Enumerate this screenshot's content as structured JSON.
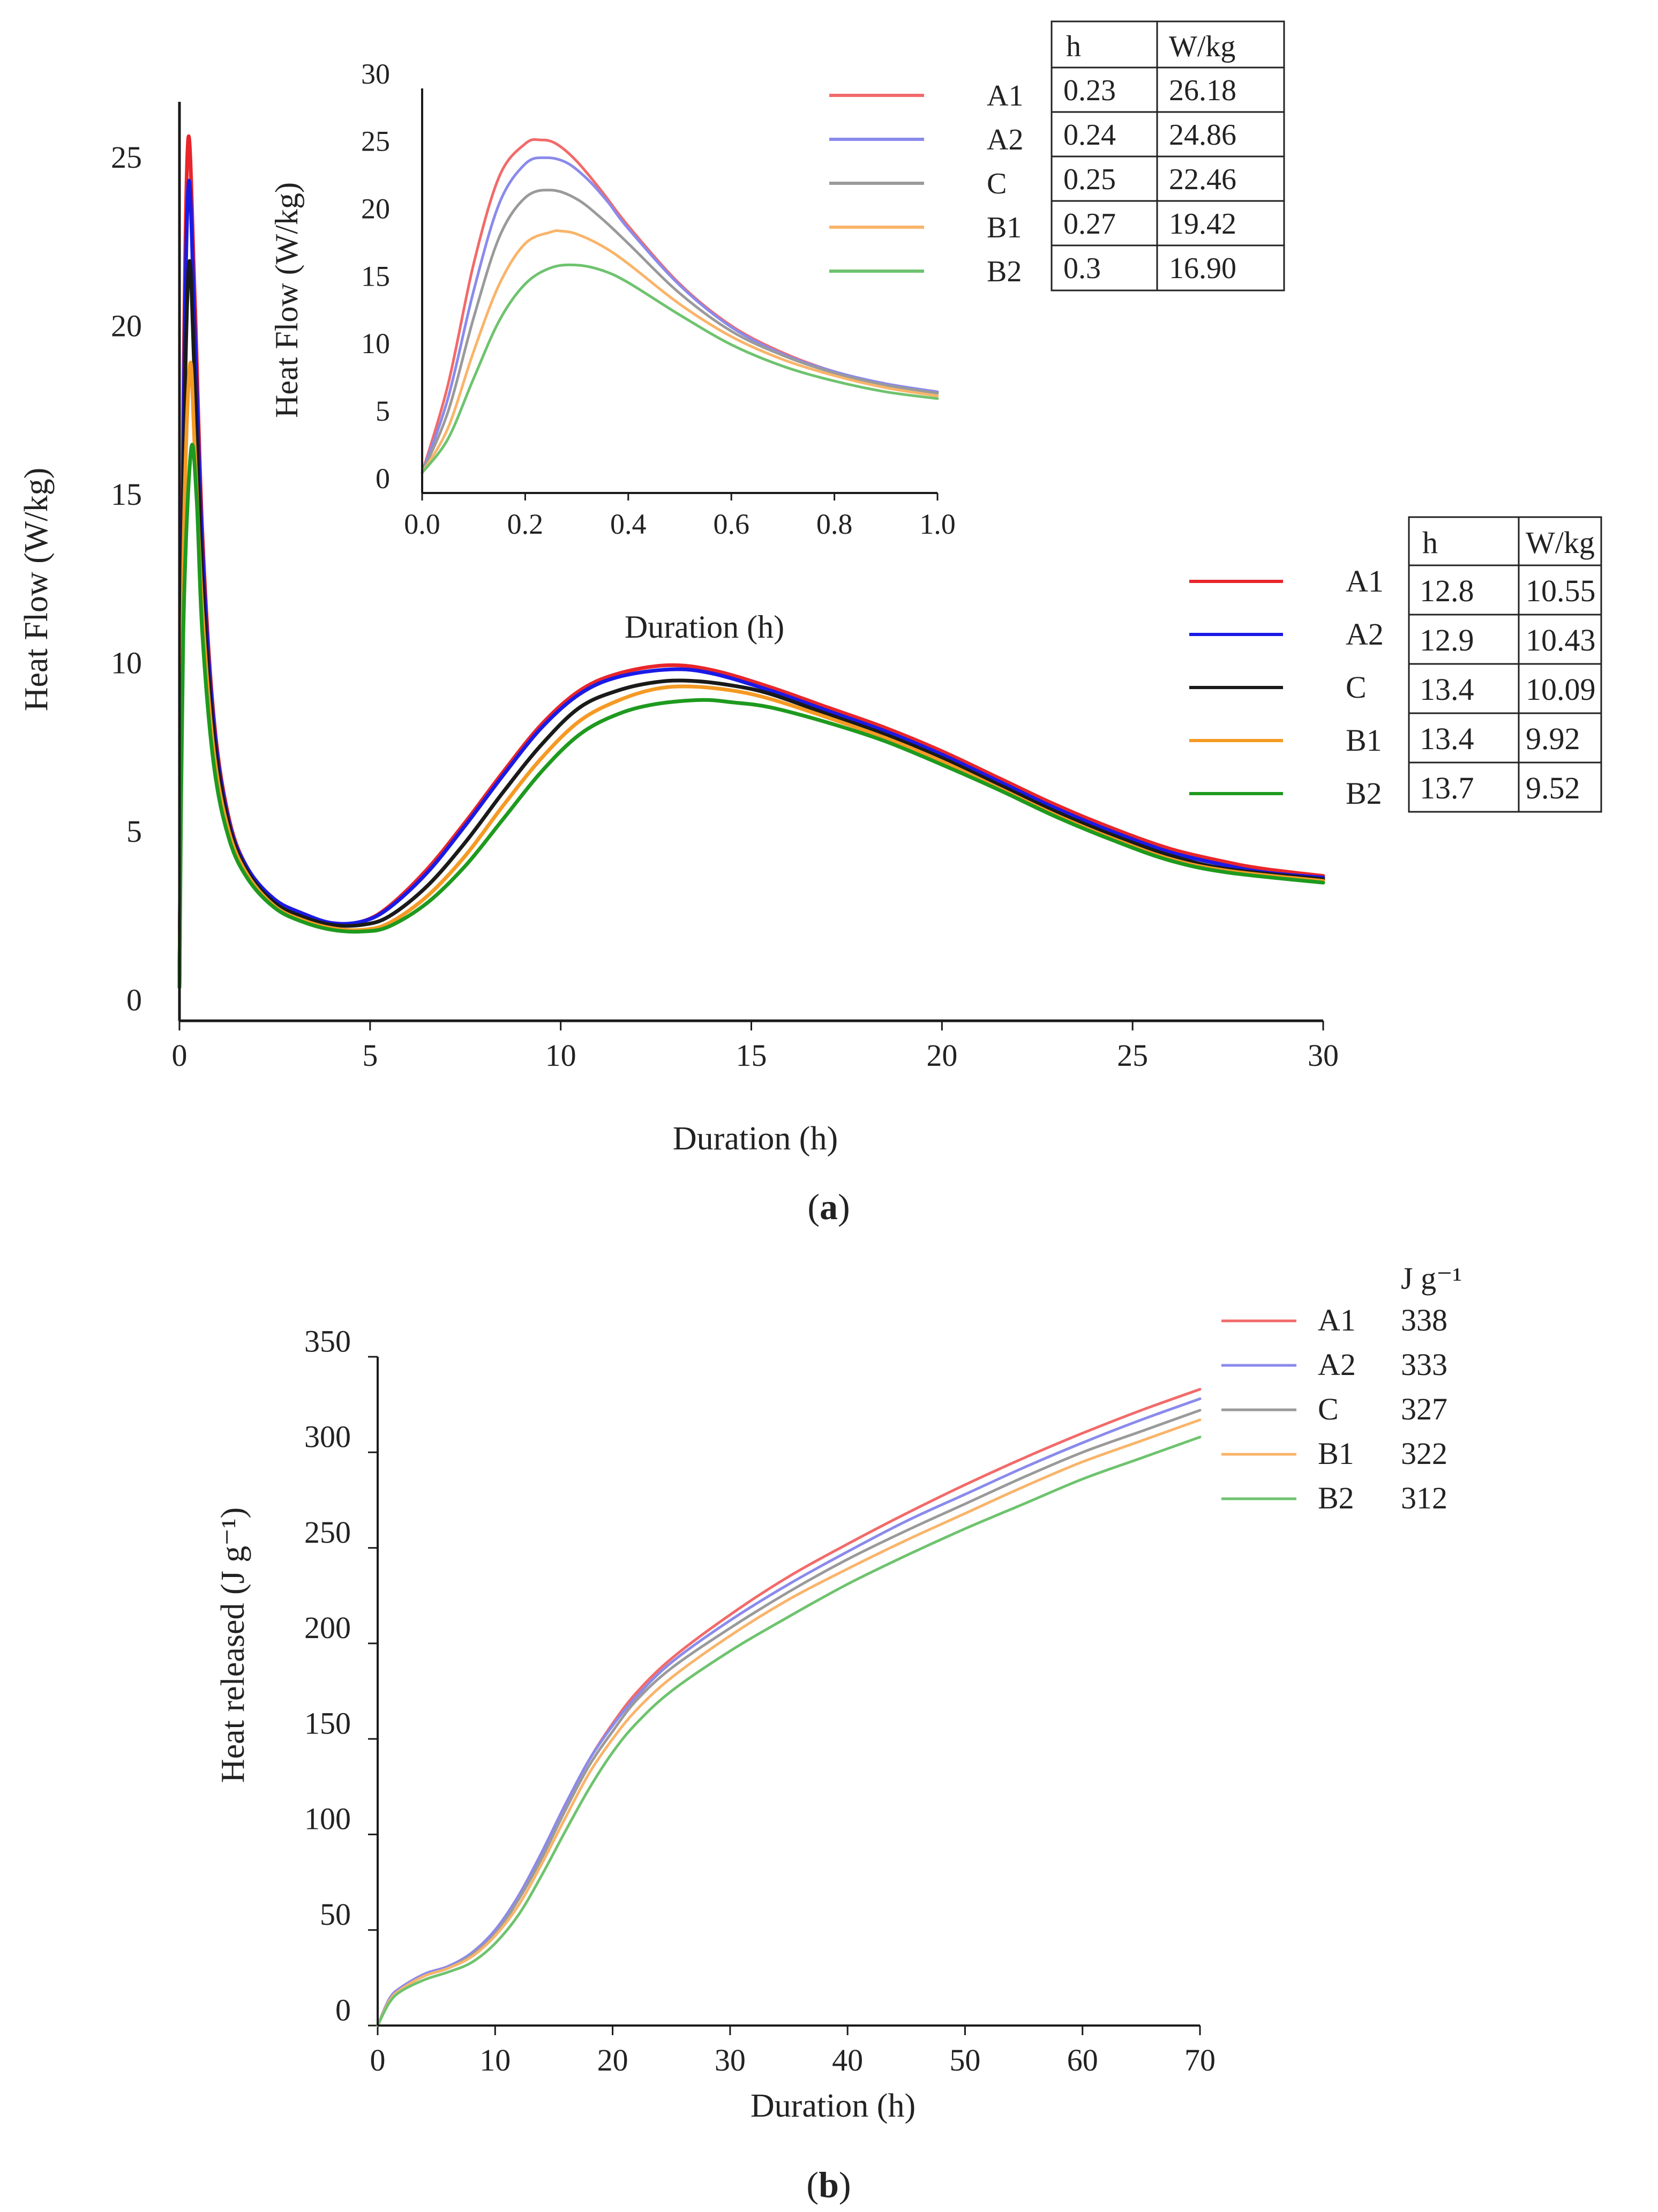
{
  "colors": {
    "A1": "#e8262b",
    "A2": "#1a1ae6",
    "C": "#1a1a1a",
    "B1": "#f59a24",
    "B2": "#1e9a1e"
  },
  "inset_colors": {
    "A1": "#f26a6a",
    "A2": "#8a8aec",
    "C": "#9a9a9a",
    "B1": "#f9b46a",
    "B2": "#6ec36e"
  },
  "panel_a": {
    "caption_pre": "(",
    "caption_bold": "a",
    "caption_post": ")",
    "main_table": {
      "headers": [
        "h",
        "W/kg"
      ],
      "rows": [
        {
          "name": "A1",
          "h": "12.8",
          "w": "10.55"
        },
        {
          "name": "A2",
          "h": "12.9",
          "w": "10.43"
        },
        {
          "name": "C",
          "h": "13.4",
          "w": "10.09"
        },
        {
          "name": "B1",
          "h": "13.4",
          "w": "9.92"
        },
        {
          "name": "B2",
          "h": "13.7",
          "w": "9.52"
        }
      ]
    },
    "inset_table": {
      "headers": [
        "h",
        "W/kg"
      ],
      "rows": [
        {
          "name": "A1",
          "h": "0.23",
          "w": "26.18"
        },
        {
          "name": "A2",
          "h": "0.24",
          "w": "24.86"
        },
        {
          "name": "C",
          "h": "0.25",
          "w": "22.46"
        },
        {
          "name": "B1",
          "h": "0.27",
          "w": "19.42"
        },
        {
          "name": "B2",
          "h": "0.3",
          "w": "16.90"
        }
      ]
    }
  },
  "panel_b": {
    "caption_pre": "(",
    "caption_bold": "b",
    "caption_post": ")",
    "legend_header": "J g⁻¹",
    "legend": [
      {
        "name": "A1",
        "value": "338"
      },
      {
        "name": "A2",
        "value": "333"
      },
      {
        "name": "C",
        "value": "327"
      },
      {
        "name": "B1",
        "value": "322"
      },
      {
        "name": "B2",
        "value": "312"
      }
    ]
  },
  "chart_data": [
    {
      "id": "a_main",
      "type": "line",
      "title": "",
      "xlabel": "Duration (h)",
      "ylabel": "Heat Flow (W/kg)",
      "xlim": [
        0,
        30
      ],
      "ylim": [
        0,
        27
      ],
      "xticks": [
        0,
        5,
        10,
        15,
        20,
        25,
        30
      ],
      "yticks": [
        0,
        5,
        10,
        15,
        20,
        25
      ],
      "series": [
        {
          "name": "A1",
          "x": [
            0,
            0.1,
            0.23,
            0.4,
            0.6,
            0.9,
            1.3,
            1.8,
            2.5,
            3.2,
            4,
            4.8,
            5.5,
            6.5,
            7.5,
            8.5,
            9.5,
            10.5,
            11.5,
            12.8,
            14,
            15.5,
            17,
            18.5,
            20,
            21.5,
            23,
            24.5,
            26,
            27.5,
            28.5,
            30
          ],
          "y": [
            1.0,
            18.0,
            26.18,
            21.5,
            14.5,
            9.0,
            6.0,
            4.5,
            3.6,
            3.2,
            2.9,
            2.95,
            3.4,
            4.5,
            5.9,
            7.4,
            8.8,
            9.8,
            10.3,
            10.55,
            10.4,
            9.9,
            9.3,
            8.7,
            8.0,
            7.2,
            6.4,
            5.7,
            5.1,
            4.7,
            4.5,
            4.3
          ]
        },
        {
          "name": "A2",
          "x": [
            0,
            0.1,
            0.24,
            0.4,
            0.6,
            0.9,
            1.3,
            1.8,
            2.5,
            3.2,
            4,
            4.8,
            5.5,
            6.5,
            7.5,
            8.5,
            9.5,
            10.5,
            11.5,
            12.9,
            14,
            15.5,
            17,
            18.5,
            20,
            21.5,
            23,
            24.5,
            26,
            27.5,
            28.5,
            30
          ],
          "y": [
            1.0,
            17.0,
            24.86,
            20.5,
            14.0,
            8.8,
            5.9,
            4.5,
            3.6,
            3.2,
            2.9,
            2.95,
            3.35,
            4.4,
            5.8,
            7.3,
            8.7,
            9.7,
            10.2,
            10.43,
            10.3,
            9.8,
            9.2,
            8.6,
            7.9,
            7.1,
            6.3,
            5.6,
            5.0,
            4.6,
            4.4,
            4.25
          ]
        },
        {
          "name": "C",
          "x": [
            0,
            0.1,
            0.25,
            0.4,
            0.6,
            0.9,
            1.3,
            1.8,
            2.5,
            3.2,
            4,
            4.8,
            5.5,
            6.5,
            7.5,
            8.5,
            9.5,
            10.5,
            11.5,
            12.5,
            13.4,
            14.5,
            15.5,
            17,
            18.5,
            20,
            21.5,
            23,
            24.5,
            26,
            27.5,
            30
          ],
          "y": [
            1.0,
            15.5,
            22.46,
            19.0,
            13.2,
            8.5,
            5.8,
            4.4,
            3.5,
            3.1,
            2.85,
            2.85,
            3.1,
            4.0,
            5.3,
            6.8,
            8.2,
            9.3,
            9.8,
            10.05,
            10.09,
            9.95,
            9.7,
            9.1,
            8.5,
            7.8,
            7.0,
            6.2,
            5.5,
            4.9,
            4.5,
            4.2
          ]
        },
        {
          "name": "B1",
          "x": [
            0,
            0.1,
            0.27,
            0.4,
            0.6,
            0.9,
            1.3,
            1.8,
            2.5,
            3.2,
            4,
            4.8,
            5.5,
            6.5,
            7.5,
            8.5,
            9.5,
            10.5,
            11.5,
            12.5,
            13.4,
            14.5,
            15.5,
            17,
            18.5,
            20,
            21.5,
            23,
            24.5,
            26,
            27.5,
            30
          ],
          "y": [
            1.0,
            13.5,
            19.42,
            17.0,
            12.2,
            8.0,
            5.6,
            4.3,
            3.4,
            3.0,
            2.75,
            2.7,
            2.9,
            3.7,
            4.9,
            6.4,
            7.8,
            8.9,
            9.5,
            9.85,
            9.92,
            9.8,
            9.55,
            9.0,
            8.4,
            7.7,
            6.9,
            6.1,
            5.4,
            4.8,
            4.45,
            4.15
          ]
        },
        {
          "name": "B2",
          "x": [
            0,
            0.1,
            0.3,
            0.45,
            0.6,
            0.9,
            1.3,
            1.8,
            2.5,
            3.2,
            4,
            4.8,
            5.5,
            6.5,
            7.5,
            8.5,
            9.5,
            10.5,
            11.5,
            12.5,
            13.7,
            14.5,
            15.5,
            17,
            18.5,
            20,
            21.5,
            23,
            24.5,
            26,
            27.5,
            30
          ],
          "y": [
            1.0,
            11.5,
            16.9,
            15.5,
            11.5,
            7.6,
            5.4,
            4.2,
            3.35,
            2.95,
            2.7,
            2.65,
            2.8,
            3.5,
            4.6,
            6.0,
            7.4,
            8.5,
            9.1,
            9.4,
            9.52,
            9.45,
            9.3,
            8.85,
            8.3,
            7.6,
            6.85,
            6.05,
            5.35,
            4.75,
            4.4,
            4.1
          ]
        }
      ]
    },
    {
      "id": "a_inset",
      "type": "line",
      "title": "",
      "xlabel": "Duration (h)",
      "ylabel": "Heat Flow (W/kg)",
      "xlim": [
        0,
        1
      ],
      "ylim": [
        0,
        30
      ],
      "xticks": [
        0.0,
        0.2,
        0.4,
        0.6,
        0.8,
        1.0
      ],
      "xtick_labels": [
        "0.0",
        "0.2",
        "0.4",
        "0.6",
        "0.8",
        "1.0"
      ],
      "yticks": [
        0,
        5,
        10,
        15,
        20,
        25,
        30
      ],
      "series": [
        {
          "name": "A1",
          "x": [
            0,
            0.05,
            0.1,
            0.15,
            0.2,
            0.23,
            0.26,
            0.3,
            0.35,
            0.4,
            0.5,
            0.6,
            0.7,
            0.8,
            0.9,
            1.0
          ],
          "y": [
            1.5,
            8.0,
            17.0,
            23.5,
            25.9,
            26.18,
            25.9,
            24.6,
            22.3,
            19.8,
            15.5,
            12.4,
            10.4,
            9.0,
            8.1,
            7.5
          ]
        },
        {
          "name": "A2",
          "x": [
            0,
            0.05,
            0.1,
            0.15,
            0.2,
            0.24,
            0.28,
            0.32,
            0.36,
            0.4,
            0.5,
            0.6,
            0.7,
            0.8,
            0.9,
            1.0
          ],
          "y": [
            1.5,
            7.0,
            15.0,
            21.5,
            24.4,
            24.86,
            24.5,
            23.3,
            21.6,
            19.6,
            15.4,
            12.3,
            10.3,
            9.0,
            8.1,
            7.5
          ]
        },
        {
          "name": "C",
          "x": [
            0,
            0.05,
            0.1,
            0.15,
            0.2,
            0.25,
            0.3,
            0.35,
            0.4,
            0.5,
            0.6,
            0.7,
            0.8,
            0.9,
            1.0
          ],
          "y": [
            1.5,
            6.0,
            13.0,
            19.0,
            21.9,
            22.46,
            21.8,
            20.3,
            18.5,
            14.8,
            12.0,
            10.2,
            8.9,
            8.0,
            7.4
          ]
        },
        {
          "name": "B1",
          "x": [
            0,
            0.05,
            0.1,
            0.15,
            0.2,
            0.25,
            0.27,
            0.3,
            0.35,
            0.4,
            0.5,
            0.6,
            0.7,
            0.8,
            0.9,
            1.0
          ],
          "y": [
            1.5,
            4.8,
            10.5,
            15.5,
            18.5,
            19.35,
            19.42,
            19.2,
            18.3,
            17.0,
            14.0,
            11.6,
            9.9,
            8.7,
            7.8,
            7.2
          ]
        },
        {
          "name": "B2",
          "x": [
            0,
            0.05,
            0.1,
            0.15,
            0.2,
            0.25,
            0.3,
            0.35,
            0.4,
            0.5,
            0.6,
            0.7,
            0.8,
            0.9,
            1.0
          ],
          "y": [
            1.5,
            4.0,
            8.5,
            12.8,
            15.5,
            16.7,
            16.9,
            16.5,
            15.6,
            13.2,
            11.0,
            9.4,
            8.3,
            7.5,
            7.0
          ]
        }
      ]
    },
    {
      "id": "b",
      "type": "line",
      "title": "",
      "xlabel": "Duration (h)",
      "ylabel": "Heat released (J g⁻¹)",
      "xlim": [
        0,
        70
      ],
      "ylim": [
        0,
        350
      ],
      "xticks": [
        0,
        10,
        20,
        30,
        40,
        50,
        60,
        70
      ],
      "yticks": [
        0,
        50,
        100,
        150,
        200,
        250,
        300,
        350
      ],
      "series": [
        {
          "name": "A1",
          "x": [
            0,
            1,
            2,
            4,
            6,
            8,
            10,
            12,
            14,
            16,
            18,
            20,
            22,
            25,
            30,
            35,
            40,
            45,
            50,
            55,
            60,
            65,
            70
          ],
          "y": [
            0,
            14,
            20,
            27,
            31,
            38,
            50,
            68,
            91,
            116,
            139,
            158,
            174,
            192,
            215,
            235,
            252,
            268,
            283,
            297,
            310,
            322,
            333
          ]
        },
        {
          "name": "A2",
          "x": [
            0,
            1,
            2,
            4,
            6,
            8,
            10,
            12,
            14,
            16,
            18,
            20,
            22,
            25,
            30,
            35,
            40,
            45,
            50,
            55,
            60,
            65,
            70
          ],
          "y": [
            0,
            14,
            20,
            27,
            31,
            38,
            50,
            68,
            91,
            116,
            139,
            157,
            172,
            190,
            212,
            231,
            248,
            264,
            278,
            292,
            305,
            317,
            328
          ]
        },
        {
          "name": "C",
          "x": [
            0,
            1,
            2,
            4,
            6,
            8,
            10,
            12,
            14,
            16,
            18,
            20,
            22,
            25,
            30,
            35,
            40,
            45,
            50,
            55,
            60,
            65,
            70
          ],
          "y": [
            0,
            13,
            19,
            26,
            30,
            37,
            48,
            66,
            88,
            113,
            136,
            154,
            170,
            187,
            208,
            227,
            244,
            259,
            273,
            287,
            300,
            311,
            322
          ]
        },
        {
          "name": "B1",
          "x": [
            0,
            1,
            2,
            4,
            6,
            8,
            10,
            12,
            14,
            16,
            18,
            20,
            22,
            25,
            30,
            35,
            40,
            45,
            50,
            55,
            60,
            65,
            70
          ],
          "y": [
            0,
            13,
            19,
            26,
            30,
            36,
            47,
            63,
            85,
            109,
            132,
            150,
            165,
            182,
            204,
            223,
            239,
            254,
            268,
            282,
            295,
            306,
            317
          ]
        },
        {
          "name": "B2",
          "x": [
            0,
            1,
            2,
            4,
            6,
            8,
            10,
            12,
            14,
            16,
            18,
            20,
            22,
            25,
            30,
            35,
            40,
            45,
            50,
            55,
            60,
            65,
            70
          ],
          "y": [
            0,
            12,
            18,
            24,
            28,
            33,
            43,
            58,
            79,
            102,
            124,
            143,
            158,
            175,
            196,
            214,
            231,
            246,
            260,
            273,
            286,
            297,
            308
          ]
        }
      ]
    }
  ]
}
